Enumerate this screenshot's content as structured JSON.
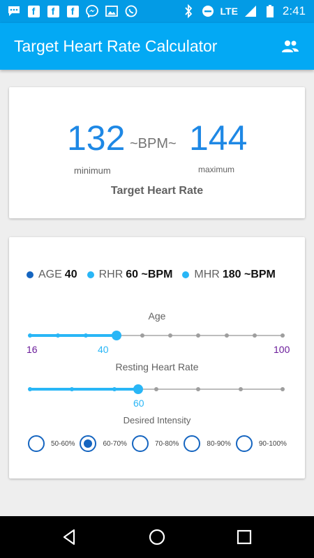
{
  "status_bar": {
    "lte": "LTE",
    "time": "2:41",
    "icons_left": [
      "messages-icon",
      "facebook-icon",
      "facebook-icon",
      "facebook-icon",
      "messenger-icon",
      "gallery-icon",
      "whatsapp-icon"
    ],
    "icons_right": [
      "bluetooth-icon",
      "do-not-disturb-icon",
      "signal-icon",
      "battery-icon"
    ]
  },
  "app_bar": {
    "title": "Target Heart Rate Calculator",
    "action_icon": "people-icon"
  },
  "result": {
    "min_value": "132",
    "separator": "~BPM~",
    "max_value": "144",
    "min_label": "minimum",
    "max_label": "maximum",
    "caption": "Target Heart Rate"
  },
  "legend": {
    "age_label": "AGE",
    "age_value": "40",
    "rhr_label": "RHR",
    "rhr_value": "60 ~BPM",
    "mhr_label": "MHR",
    "mhr_value": "180 ~BPM",
    "colors": {
      "age": "#1565c0",
      "rhr": "#29b6f6",
      "mhr": "#29b6f6"
    }
  },
  "age_slider": {
    "title": "Age",
    "min_label": "16",
    "value_label": "40",
    "max_label": "100",
    "min": 16,
    "max": 100,
    "value": 40,
    "steps": 10
  },
  "rhr_slider": {
    "title": "Resting Heart Rate",
    "value_label": "60",
    "value_fraction": 0.428,
    "steps": 7
  },
  "intensity": {
    "title": "Desired Intensity",
    "options": [
      "50-60%",
      "60-70%",
      "70-80%",
      "80-90%",
      "90-100%"
    ],
    "selected_index": 1
  },
  "colors": {
    "status_bar": "#039be5",
    "app_bar": "#03a9f4",
    "accent": "#29b6f6",
    "number": "#1e88e5",
    "radio": "#1565c0",
    "min_max_label": "#6a1b9a"
  }
}
